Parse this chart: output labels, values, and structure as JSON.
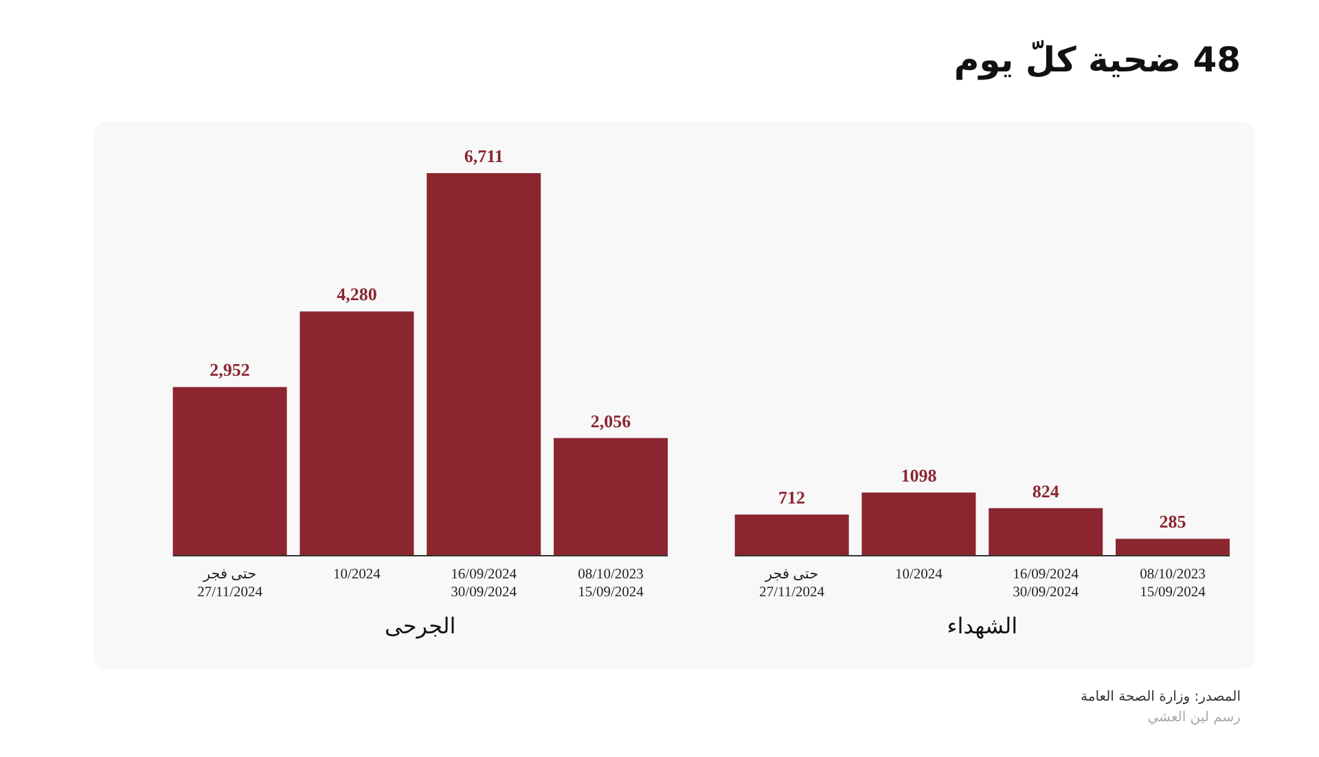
{
  "chart_data": [
    {
      "type": "bar",
      "title": "48 ضحية كلّ يوم",
      "xlabel": "الشهداء",
      "categories": [
        "حتى فجر\n27/11/2024",
        "10/2024",
        "16/09/2024\n30/09/2024",
        "08/10/2023\n15/09/2024"
      ],
      "values": [
        712,
        1098,
        824,
        285
      ],
      "color": "#8b2630",
      "data_labels": true,
      "annotations": [
        "المصدر: وزارة الصحة العامة",
        "رسم لين العشي"
      ]
    },
    {
      "type": "bar",
      "xlabel": "الجرحى",
      "categories": [
        "حتى فجر\n27/11/2024",
        "10/2024",
        "16/09/2024\n30/09/2024",
        "08/10/2023\n15/09/2024"
      ],
      "values": [
        2952,
        4280,
        6711,
        2056
      ],
      "color": "#8b2630",
      "value_labels": [
        "2,952",
        "4,280",
        "6,711",
        "2,056"
      ]
    }
  ]
}
